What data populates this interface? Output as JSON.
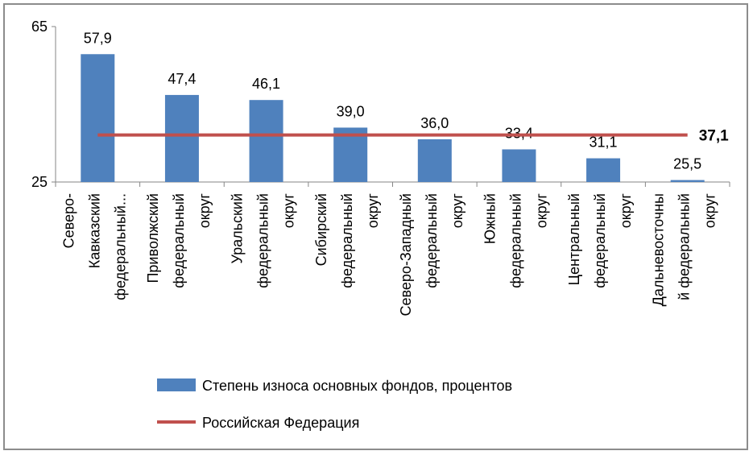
{
  "chart_data": {
    "type": "bar",
    "categories": [
      [
        "Северо-",
        "Кавказский",
        "федеральный..."
      ],
      [
        "Приволжский",
        "федеральный",
        "округ"
      ],
      [
        "Уральский",
        "федеральный",
        "округ"
      ],
      [
        "Сибирский",
        "федеральный",
        "округ"
      ],
      [
        "Северо-Западный",
        "федеральный",
        "округ"
      ],
      [
        "Южный",
        "федеральный",
        "округ"
      ],
      [
        "Центральный",
        "федеральный",
        "округ"
      ],
      [
        "Дальневосточны",
        "й федеральный",
        "округ"
      ]
    ],
    "values": [
      57.9,
      47.4,
      46.1,
      39.0,
      36.0,
      33.4,
      31.1,
      25.5
    ],
    "value_labels": [
      "57,9",
      "47,4",
      "46,1",
      "39,0",
      "36,0",
      "33,4",
      "31,1",
      "25,5"
    ],
    "reference_line": {
      "name": "Российская Федерация",
      "value": 37.1,
      "label": "37,1",
      "color": "#C0504D"
    },
    "series": [
      {
        "name": "Степень износа основных фондов, процентов",
        "color": "#4F81BD"
      }
    ],
    "ylim": [
      25,
      65
    ],
    "yticks": [
      "25",
      "65"
    ],
    "grid": false,
    "legend_position": "bottom"
  }
}
